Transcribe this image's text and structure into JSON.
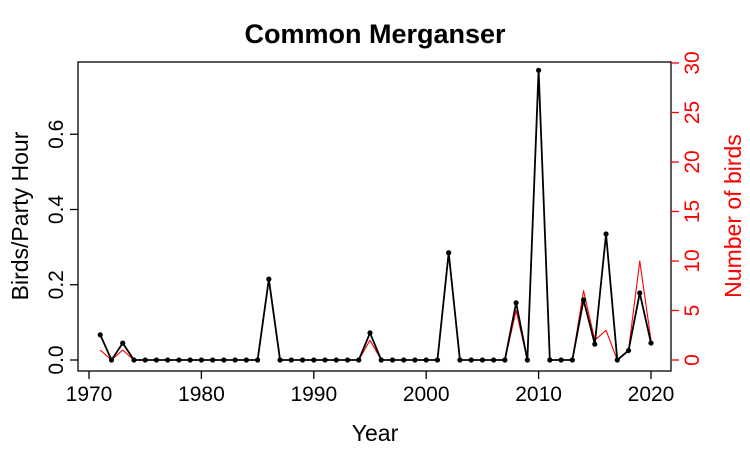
{
  "chart_data": {
    "type": "line",
    "title": "Common Merganser",
    "xlabel": "Year",
    "ylabel": "Birds/Party Hour",
    "y2label": "Number of birds",
    "xlim": [
      1970,
      2020
    ],
    "ylim": [
      0,
      0.8
    ],
    "y2lim": [
      0,
      30
    ],
    "xticks": [
      "1970",
      "1980",
      "1990",
      "2000",
      "2010",
      "2020"
    ],
    "yticks": [
      "0.0",
      "0.2",
      "0.4",
      "0.6"
    ],
    "y2ticks": [
      "0",
      "5",
      "10",
      "15",
      "20",
      "25",
      "30"
    ],
    "x": [
      1971,
      1972,
      1973,
      1974,
      1975,
      1976,
      1977,
      1978,
      1979,
      1980,
      1981,
      1982,
      1983,
      1984,
      1985,
      1986,
      1987,
      1988,
      1989,
      1990,
      1991,
      1992,
      1993,
      1994,
      1995,
      1996,
      1997,
      1998,
      1999,
      2000,
      2001,
      2002,
      2003,
      2004,
      2005,
      2006,
      2007,
      2008,
      2009,
      2010,
      2011,
      2012,
      2013,
      2014,
      2015,
      2016,
      2017,
      2018,
      2019,
      2020
    ],
    "series": [
      {
        "axis": "left",
        "color": "#000000",
        "markers": true,
        "values": [
          0.067,
          0.0,
          0.045,
          0.0,
          0.0,
          0.0,
          0.0,
          0.0,
          0.0,
          0.0,
          0.0,
          0.0,
          0.0,
          0.0,
          0.0,
          0.215,
          0.0,
          0.0,
          0.0,
          0.0,
          0.0,
          0.0,
          0.0,
          0.0,
          0.072,
          0.0,
          0.0,
          0.0,
          0.0,
          0.0,
          0.0,
          0.285,
          0.0,
          0.0,
          0.0,
          0.0,
          0.0,
          0.152,
          0.0,
          0.77,
          0.0,
          0.0,
          0.0,
          0.16,
          0.042,
          0.335,
          0.0,
          0.025,
          0.178,
          0.045
        ]
      },
      {
        "axis": "right",
        "color": "#ff0000",
        "markers": false,
        "values": [
          1,
          0,
          1,
          0,
          0,
          0,
          0,
          0,
          0,
          0,
          0,
          0,
          0,
          0,
          0,
          8,
          0,
          0,
          0,
          0,
          0,
          0,
          0,
          0,
          2,
          0,
          0,
          0,
          0,
          0,
          0,
          11,
          0,
          0,
          0,
          0,
          0,
          5,
          0,
          29,
          0,
          0,
          0,
          7,
          2,
          3,
          0,
          1,
          10,
          2
        ]
      }
    ]
  }
}
